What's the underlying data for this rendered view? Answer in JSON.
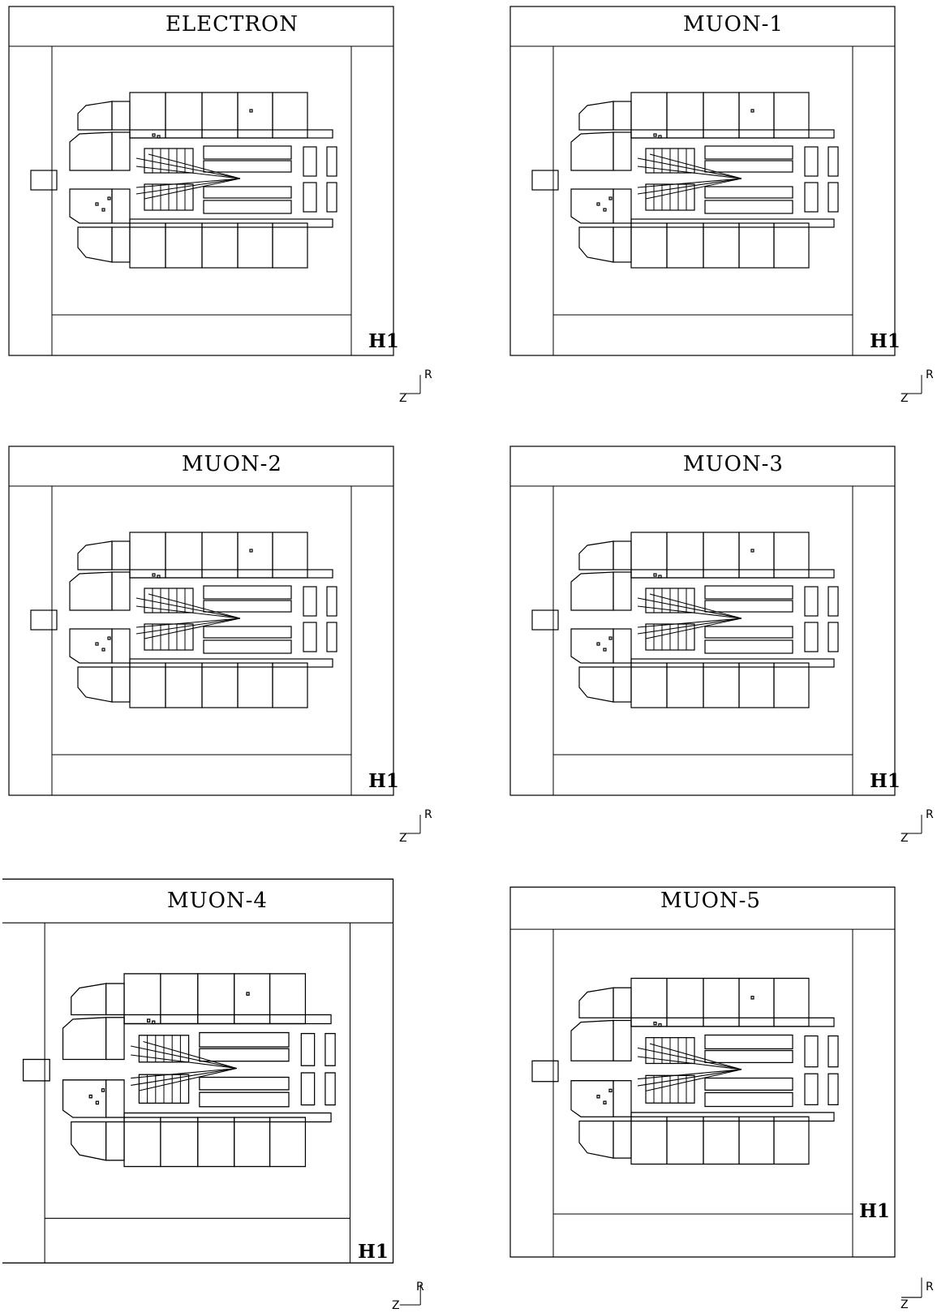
{
  "panels": [
    {
      "title": "ELECTRON",
      "logo": "H1",
      "axis_r": "R",
      "axis_z": "Z"
    },
    {
      "title": "MUON-1",
      "logo": "H1",
      "axis_r": "R",
      "axis_z": "Z"
    },
    {
      "title": "MUON-2",
      "logo": "H1",
      "axis_r": "R",
      "axis_z": "Z"
    },
    {
      "title": "MUON-3",
      "logo": "H1",
      "axis_r": "R",
      "axis_z": "Z"
    },
    {
      "title": "MUON-4",
      "logo": "H1",
      "axis_r": "R",
      "axis_z": "Z"
    },
    {
      "title": "MUON-5",
      "logo": "H1",
      "axis_r": "R",
      "axis_z": "Z"
    }
  ]
}
